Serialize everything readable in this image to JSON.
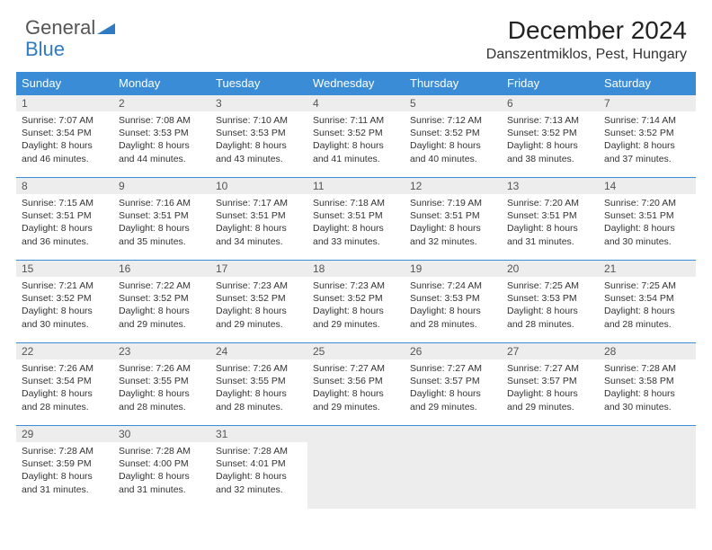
{
  "logo": {
    "text1": "General",
    "text2": "Blue"
  },
  "title": "December 2024",
  "location": "Danszentmiklos, Pest, Hungary",
  "colors": {
    "header_bg": "#3a8cd6",
    "header_fg": "#ffffff",
    "daynum_bg": "#ededed",
    "border": "#3a8cd6",
    "logo_blue": "#2e7bc4"
  },
  "day_headers": [
    "Sunday",
    "Monday",
    "Tuesday",
    "Wednesday",
    "Thursday",
    "Friday",
    "Saturday"
  ],
  "weeks": [
    [
      {
        "n": "1",
        "sr": "Sunrise: 7:07 AM",
        "ss": "Sunset: 3:54 PM",
        "d1": "Daylight: 8 hours",
        "d2": "and 46 minutes."
      },
      {
        "n": "2",
        "sr": "Sunrise: 7:08 AM",
        "ss": "Sunset: 3:53 PM",
        "d1": "Daylight: 8 hours",
        "d2": "and 44 minutes."
      },
      {
        "n": "3",
        "sr": "Sunrise: 7:10 AM",
        "ss": "Sunset: 3:53 PM",
        "d1": "Daylight: 8 hours",
        "d2": "and 43 minutes."
      },
      {
        "n": "4",
        "sr": "Sunrise: 7:11 AM",
        "ss": "Sunset: 3:52 PM",
        "d1": "Daylight: 8 hours",
        "d2": "and 41 minutes."
      },
      {
        "n": "5",
        "sr": "Sunrise: 7:12 AM",
        "ss": "Sunset: 3:52 PM",
        "d1": "Daylight: 8 hours",
        "d2": "and 40 minutes."
      },
      {
        "n": "6",
        "sr": "Sunrise: 7:13 AM",
        "ss": "Sunset: 3:52 PM",
        "d1": "Daylight: 8 hours",
        "d2": "and 38 minutes."
      },
      {
        "n": "7",
        "sr": "Sunrise: 7:14 AM",
        "ss": "Sunset: 3:52 PM",
        "d1": "Daylight: 8 hours",
        "d2": "and 37 minutes."
      }
    ],
    [
      {
        "n": "8",
        "sr": "Sunrise: 7:15 AM",
        "ss": "Sunset: 3:51 PM",
        "d1": "Daylight: 8 hours",
        "d2": "and 36 minutes."
      },
      {
        "n": "9",
        "sr": "Sunrise: 7:16 AM",
        "ss": "Sunset: 3:51 PM",
        "d1": "Daylight: 8 hours",
        "d2": "and 35 minutes."
      },
      {
        "n": "10",
        "sr": "Sunrise: 7:17 AM",
        "ss": "Sunset: 3:51 PM",
        "d1": "Daylight: 8 hours",
        "d2": "and 34 minutes."
      },
      {
        "n": "11",
        "sr": "Sunrise: 7:18 AM",
        "ss": "Sunset: 3:51 PM",
        "d1": "Daylight: 8 hours",
        "d2": "and 33 minutes."
      },
      {
        "n": "12",
        "sr": "Sunrise: 7:19 AM",
        "ss": "Sunset: 3:51 PM",
        "d1": "Daylight: 8 hours",
        "d2": "and 32 minutes."
      },
      {
        "n": "13",
        "sr": "Sunrise: 7:20 AM",
        "ss": "Sunset: 3:51 PM",
        "d1": "Daylight: 8 hours",
        "d2": "and 31 minutes."
      },
      {
        "n": "14",
        "sr": "Sunrise: 7:20 AM",
        "ss": "Sunset: 3:51 PM",
        "d1": "Daylight: 8 hours",
        "d2": "and 30 minutes."
      }
    ],
    [
      {
        "n": "15",
        "sr": "Sunrise: 7:21 AM",
        "ss": "Sunset: 3:52 PM",
        "d1": "Daylight: 8 hours",
        "d2": "and 30 minutes."
      },
      {
        "n": "16",
        "sr": "Sunrise: 7:22 AM",
        "ss": "Sunset: 3:52 PM",
        "d1": "Daylight: 8 hours",
        "d2": "and 29 minutes."
      },
      {
        "n": "17",
        "sr": "Sunrise: 7:23 AM",
        "ss": "Sunset: 3:52 PM",
        "d1": "Daylight: 8 hours",
        "d2": "and 29 minutes."
      },
      {
        "n": "18",
        "sr": "Sunrise: 7:23 AM",
        "ss": "Sunset: 3:52 PM",
        "d1": "Daylight: 8 hours",
        "d2": "and 29 minutes."
      },
      {
        "n": "19",
        "sr": "Sunrise: 7:24 AM",
        "ss": "Sunset: 3:53 PM",
        "d1": "Daylight: 8 hours",
        "d2": "and 28 minutes."
      },
      {
        "n": "20",
        "sr": "Sunrise: 7:25 AM",
        "ss": "Sunset: 3:53 PM",
        "d1": "Daylight: 8 hours",
        "d2": "and 28 minutes."
      },
      {
        "n": "21",
        "sr": "Sunrise: 7:25 AM",
        "ss": "Sunset: 3:54 PM",
        "d1": "Daylight: 8 hours",
        "d2": "and 28 minutes."
      }
    ],
    [
      {
        "n": "22",
        "sr": "Sunrise: 7:26 AM",
        "ss": "Sunset: 3:54 PM",
        "d1": "Daylight: 8 hours",
        "d2": "and 28 minutes."
      },
      {
        "n": "23",
        "sr": "Sunrise: 7:26 AM",
        "ss": "Sunset: 3:55 PM",
        "d1": "Daylight: 8 hours",
        "d2": "and 28 minutes."
      },
      {
        "n": "24",
        "sr": "Sunrise: 7:26 AM",
        "ss": "Sunset: 3:55 PM",
        "d1": "Daylight: 8 hours",
        "d2": "and 28 minutes."
      },
      {
        "n": "25",
        "sr": "Sunrise: 7:27 AM",
        "ss": "Sunset: 3:56 PM",
        "d1": "Daylight: 8 hours",
        "d2": "and 29 minutes."
      },
      {
        "n": "26",
        "sr": "Sunrise: 7:27 AM",
        "ss": "Sunset: 3:57 PM",
        "d1": "Daylight: 8 hours",
        "d2": "and 29 minutes."
      },
      {
        "n": "27",
        "sr": "Sunrise: 7:27 AM",
        "ss": "Sunset: 3:57 PM",
        "d1": "Daylight: 8 hours",
        "d2": "and 29 minutes."
      },
      {
        "n": "28",
        "sr": "Sunrise: 7:28 AM",
        "ss": "Sunset: 3:58 PM",
        "d1": "Daylight: 8 hours",
        "d2": "and 30 minutes."
      }
    ],
    [
      {
        "n": "29",
        "sr": "Sunrise: 7:28 AM",
        "ss": "Sunset: 3:59 PM",
        "d1": "Daylight: 8 hours",
        "d2": "and 31 minutes."
      },
      {
        "n": "30",
        "sr": "Sunrise: 7:28 AM",
        "ss": "Sunset: 4:00 PM",
        "d1": "Daylight: 8 hours",
        "d2": "and 31 minutes."
      },
      {
        "n": "31",
        "sr": "Sunrise: 7:28 AM",
        "ss": "Sunset: 4:01 PM",
        "d1": "Daylight: 8 hours",
        "d2": "and 32 minutes."
      },
      null,
      null,
      null,
      null
    ]
  ]
}
